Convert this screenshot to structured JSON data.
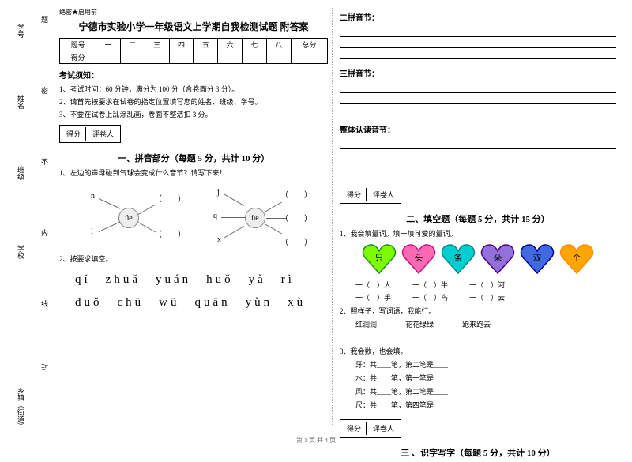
{
  "binding": {
    "labels": [
      "学号",
      "姓名",
      "班级",
      "学校",
      "乡镇（街道）"
    ],
    "marks": [
      "题",
      "密",
      "不",
      "内",
      "线",
      "封"
    ]
  },
  "header": {
    "confidential": "绝密★启用前",
    "title": "宁德市实验小学一年级语文上学期自我检测试题 附答案"
  },
  "scoreTable": {
    "row1": [
      "题号",
      "一",
      "二",
      "三",
      "四",
      "五",
      "六",
      "七",
      "八",
      "总分"
    ],
    "row2Label": "得分"
  },
  "examNotice": {
    "title": "考试须知：",
    "rules": [
      "1、考试时间：60 分钟，满分为 100 分（含卷面分 3 分）。",
      "2、请首先按要求在试卷的指定位置填写您的姓名、班级、学号。",
      "3、不要在试卷上乱涂乱画，卷面不整洁扣 3 分。"
    ]
  },
  "gradeBox": {
    "col1": "得分",
    "col2": "评卷人"
  },
  "section1": {
    "title": "一、拼音部分（每题 5 分，共计 10 分）",
    "q1": "1、左边的声母碰到气球会变成什么音节？请写下来！",
    "center": "üe",
    "leftLabels": [
      "n",
      "l"
    ],
    "rightLabels": [
      "j",
      "q",
      "x"
    ],
    "q2": "2、按要求填空。",
    "pinyinRow1": "qí　zhuǎ　yuán　huǒ　yà　rì",
    "pinyinRow2": "duǒ　chū　wū　quān　yùn　xù"
  },
  "rightCol": {
    "s2": "二拼音节：",
    "s3": "三拼音节：",
    "s4": "整体认读音节："
  },
  "section2": {
    "title": "二、填空题（每题 5 分，共计 15 分）",
    "q1": "1、我会填量词。填一填可爱的量词。",
    "hearts": [
      {
        "text": "只",
        "fill": "#7CFC00",
        "stroke": "#228B22"
      },
      {
        "text": "头",
        "fill": "#FF69B4",
        "stroke": "#C71585"
      },
      {
        "text": "条",
        "fill": "#00CED1",
        "stroke": "#008B8B"
      },
      {
        "text": "朵",
        "fill": "#9370DB",
        "stroke": "#4B0082"
      },
      {
        "text": "双",
        "fill": "#4169E1",
        "stroke": "#00008B"
      },
      {
        "text": "个",
        "fill": "#FFA500",
        "stroke": "#FF8C00"
      }
    ],
    "fills": [
      [
        "一（　）人",
        "一（　）牛",
        "一（　）河"
      ],
      [
        "一（　）手",
        "一（　）鸟",
        "一（　）云"
      ]
    ],
    "q2": "2、照样子，写词语，我能行。",
    "q2words": [
      "红润润",
      "花花绿绿",
      "跑来跑去"
    ],
    "q3": "3、我会数，也会填。",
    "q3items": [
      "牙：共____笔，第二笔是____",
      "水：共____笔，第一笔是____",
      "风：共____笔，第二笔是____",
      "尺：共____笔，第四笔是____"
    ]
  },
  "section3": {
    "title": "三 、识字写字（每题 5 分，共计 10 分）"
  },
  "footer": "第 1 页 共 4 页"
}
